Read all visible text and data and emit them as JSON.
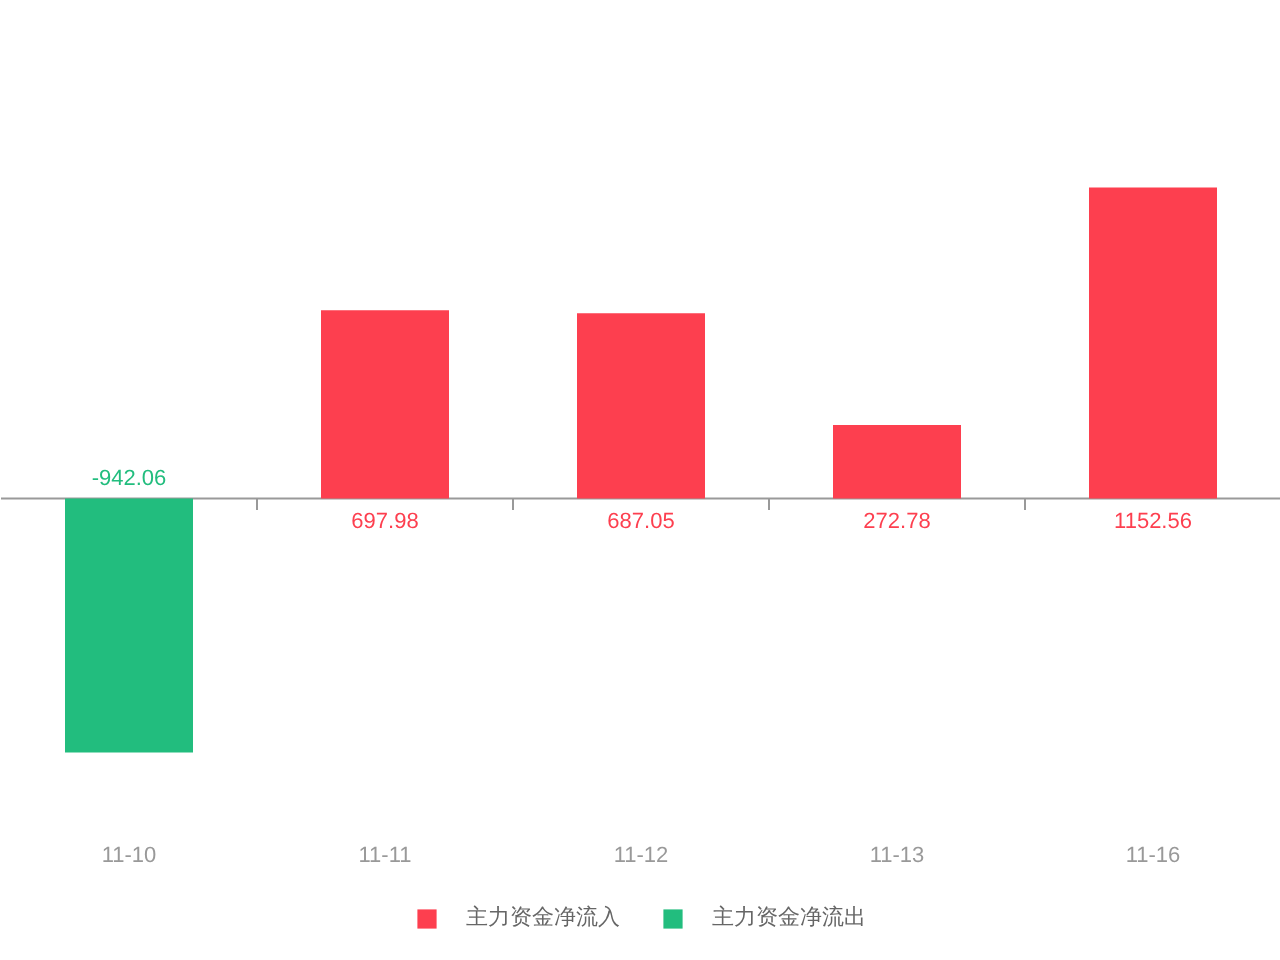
{
  "chart_data": {
    "type": "bar",
    "categories": [
      "11-10",
      "11-11",
      "11-12",
      "11-13",
      "11-16"
    ],
    "series": [
      {
        "name": "主力资金净流入",
        "color": "#fd3f4f",
        "values": [
          null,
          697.98,
          687.05,
          272.78,
          1152.56
        ]
      },
      {
        "name": "主力资金净流出",
        "color": "#22bd7e",
        "values": [
          -942.06,
          null,
          null,
          null,
          null
        ]
      }
    ],
    "data_labels": true,
    "legend": "bottom",
    "grid": false
  }
}
